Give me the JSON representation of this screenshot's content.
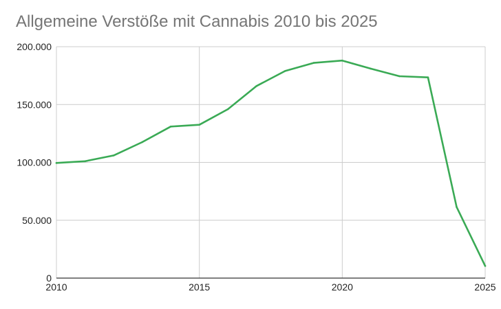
{
  "chart_data": {
    "type": "line",
    "title": "Allgemeine Verstöße mit Cannabis 2010 bis 2025",
    "xlabel": "",
    "ylabel": "",
    "xlim": [
      2010,
      2025
    ],
    "ylim": [
      0,
      200000
    ],
    "x_ticks": [
      2010,
      2015,
      2020,
      2025
    ],
    "x_tick_labels": [
      "2010",
      "2015",
      "2020",
      "2025"
    ],
    "y_ticks": [
      0,
      50000,
      100000,
      150000,
      200000
    ],
    "y_tick_labels": [
      "0",
      "50.000",
      "100.000",
      "150.000",
      "200.000"
    ],
    "grid": true,
    "legend": "none",
    "series": [
      {
        "color": "#3aaa55",
        "x": [
          2010,
          2011,
          2012,
          2013,
          2014,
          2015,
          2016,
          2017,
          2018,
          2019,
          2020,
          2021,
          2022,
          2023,
          2024,
          2025
        ],
        "y": [
          99500,
          101000,
          106000,
          117500,
          131000,
          132500,
          146000,
          166000,
          179000,
          186000,
          188000,
          181000,
          174500,
          173500,
          61500,
          10500
        ]
      }
    ]
  },
  "colors": {
    "grid": "#cccccc",
    "axis": "#333333",
    "title": "#757575",
    "line": "#3aaa55"
  }
}
